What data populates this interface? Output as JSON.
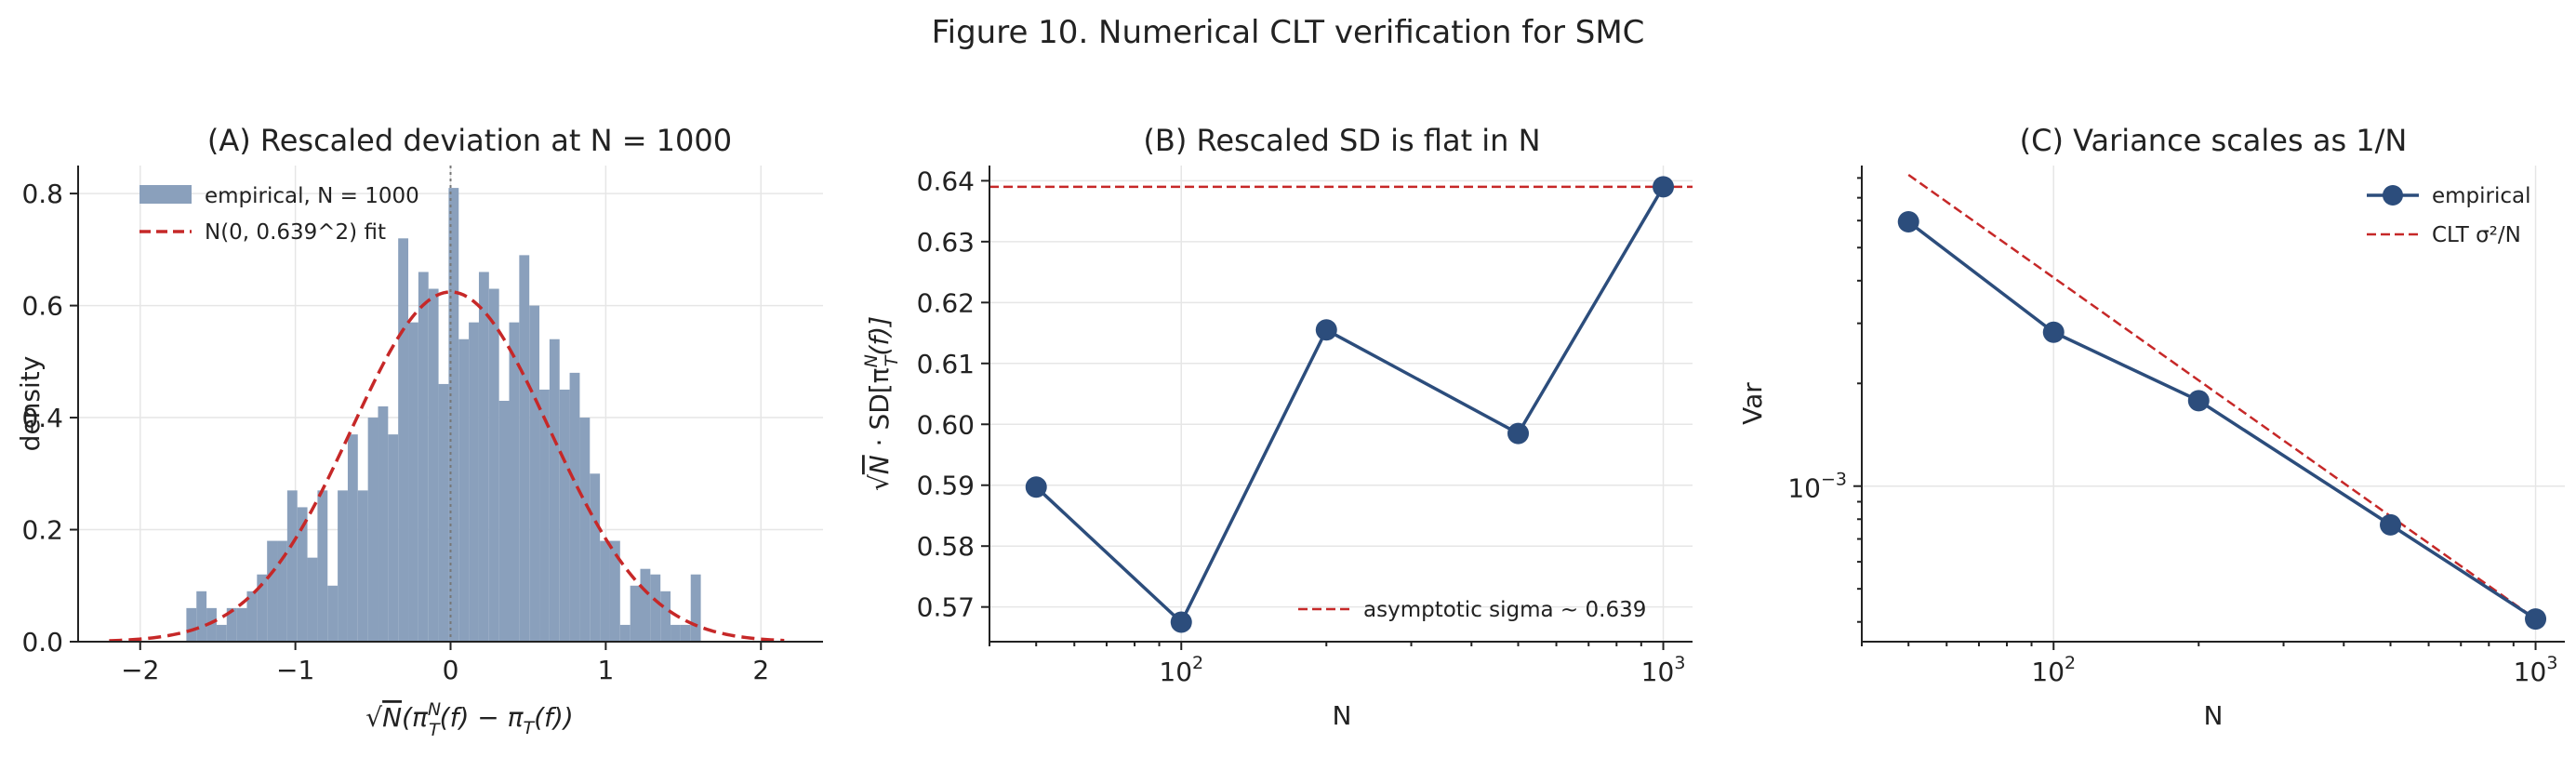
{
  "figure_title": "Figure 10. Numerical CLT verification for SMC",
  "colors": {
    "empirical": "#2c4d7c",
    "hist": "#8aa0bc",
    "fit": "#c62828",
    "vline": "#777777"
  },
  "chart_data": [
    {
      "type": "bar",
      "subtype": "histogram",
      "title": "(A) Rescaled deviation at N = 1000",
      "xlabel_parts": [
        "√",
        "N",
        "(π",
        "N",
        "T",
        "(f) − π",
        "T",
        "(f))"
      ],
      "ylabel": "density",
      "xlim": [
        -2.4,
        2.4
      ],
      "ylim": [
        0,
        0.85
      ],
      "xticks": [
        -2,
        -1,
        0,
        1,
        2
      ],
      "xtick_labels": [
        "−2",
        "−1",
        "0",
        "1",
        "2"
      ],
      "yticks": [
        0,
        0.2,
        0.4,
        0.6,
        0.8
      ],
      "ytick_labels": [
        "0.0",
        "0.2",
        "0.4",
        "0.6",
        "0.8"
      ],
      "grid": true,
      "legend_position": "top-left",
      "legend": [
        "empirical, N = 1000",
        "N(0, 0.639^2) fit"
      ],
      "bin_width": 0.065,
      "bins": [
        {
          "x": -1.67,
          "y": 0.06
        },
        {
          "x": -1.605,
          "y": 0.09
        },
        {
          "x": -1.54,
          "y": 0.06
        },
        {
          "x": -1.475,
          "y": 0.03
        },
        {
          "x": -1.41,
          "y": 0.06
        },
        {
          "x": -1.345,
          "y": 0.06
        },
        {
          "x": -1.28,
          "y": 0.09
        },
        {
          "x": -1.215,
          "y": 0.12
        },
        {
          "x": -1.15,
          "y": 0.18
        },
        {
          "x": -1.085,
          "y": 0.18
        },
        {
          "x": -1.02,
          "y": 0.27
        },
        {
          "x": -0.955,
          "y": 0.24
        },
        {
          "x": -0.89,
          "y": 0.15
        },
        {
          "x": -0.825,
          "y": 0.27
        },
        {
          "x": -0.76,
          "y": 0.1
        },
        {
          "x": -0.695,
          "y": 0.27
        },
        {
          "x": -0.63,
          "y": 0.37
        },
        {
          "x": -0.565,
          "y": 0.27
        },
        {
          "x": -0.5,
          "y": 0.4
        },
        {
          "x": -0.435,
          "y": 0.42
        },
        {
          "x": -0.37,
          "y": 0.37
        },
        {
          "x": -0.305,
          "y": 0.72
        },
        {
          "x": -0.24,
          "y": 0.57
        },
        {
          "x": -0.175,
          "y": 0.66
        },
        {
          "x": -0.11,
          "y": 0.63
        },
        {
          "x": -0.045,
          "y": 0.46
        },
        {
          "x": 0.02,
          "y": 0.81
        },
        {
          "x": 0.085,
          "y": 0.54
        },
        {
          "x": 0.15,
          "y": 0.57
        },
        {
          "x": 0.215,
          "y": 0.66
        },
        {
          "x": 0.28,
          "y": 0.63
        },
        {
          "x": 0.345,
          "y": 0.43
        },
        {
          "x": 0.41,
          "y": 0.57
        },
        {
          "x": 0.475,
          "y": 0.69
        },
        {
          "x": 0.54,
          "y": 0.6
        },
        {
          "x": 0.605,
          "y": 0.45
        },
        {
          "x": 0.67,
          "y": 0.54
        },
        {
          "x": 0.735,
          "y": 0.45
        },
        {
          "x": 0.8,
          "y": 0.48
        },
        {
          "x": 0.865,
          "y": 0.4
        },
        {
          "x": 0.93,
          "y": 0.3
        },
        {
          "x": 0.995,
          "y": 0.18
        },
        {
          "x": 1.06,
          "y": 0.18
        },
        {
          "x": 1.125,
          "y": 0.03
        },
        {
          "x": 1.19,
          "y": 0.1
        },
        {
          "x": 1.255,
          "y": 0.13
        },
        {
          "x": 1.32,
          "y": 0.12
        },
        {
          "x": 1.385,
          "y": 0.09
        },
        {
          "x": 1.45,
          "y": 0.03
        },
        {
          "x": 1.515,
          "y": 0.03
        },
        {
          "x": 1.58,
          "y": 0.12
        }
      ],
      "fit_sigma": 0.639,
      "fit_x_range": [
        -2.2,
        2.15
      ],
      "vline_x": 0
    },
    {
      "type": "line",
      "title": "(B) Rescaled SD is flat in N",
      "xlabel": "N",
      "ylabel_parts": [
        "√",
        "N",
        " · SD[π",
        "N",
        "T",
        "(f)]"
      ],
      "xscale": "log",
      "xlim": [
        40,
        1150
      ],
      "ylim": [
        0.5643,
        0.6425
      ],
      "xticks": [
        100,
        1000
      ],
      "xtick_base": "10",
      "xtick_exps": [
        "2",
        "3"
      ],
      "yticks": [
        0.57,
        0.58,
        0.59,
        0.6,
        0.61,
        0.62,
        0.63,
        0.64
      ],
      "ytick_labels": [
        "0.57",
        "0.58",
        "0.59",
        "0.60",
        "0.61",
        "0.62",
        "0.63",
        "0.64"
      ],
      "grid": true,
      "legend_position": "lower-right",
      "legend": [
        "asymptotic sigma ~ 0.639"
      ],
      "x": [
        50,
        100,
        200,
        500,
        1000
      ],
      "y": [
        0.5897,
        0.5675,
        0.6155,
        0.5985,
        0.639
      ],
      "hline": 0.639
    },
    {
      "type": "line",
      "title": "(C) Variance scales as 1/N",
      "xlabel": "N",
      "ylabel": "Var",
      "xscale": "log",
      "yscale": "log",
      "xlim": [
        40,
        1150
      ],
      "ylim": [
        0.00035,
        0.0087
      ],
      "xticks": [
        100,
        1000
      ],
      "xtick_base": "10",
      "xtick_exps": [
        "2",
        "3"
      ],
      "yticks": [
        0.001
      ],
      "ytick_base": "10",
      "ytick_exps": [
        "−3"
      ],
      "grid": true,
      "legend_position": "top-right",
      "legend": [
        "empirical",
        "CLT σ²/N"
      ],
      "x": [
        50,
        100,
        200,
        500,
        1000
      ],
      "y": [
        0.00595,
        0.002825,
        0.00178,
        0.00077,
        0.000408
      ],
      "clt_x": [
        50,
        1000
      ],
      "clt_y": [
        0.00817,
        0.000408
      ]
    }
  ]
}
